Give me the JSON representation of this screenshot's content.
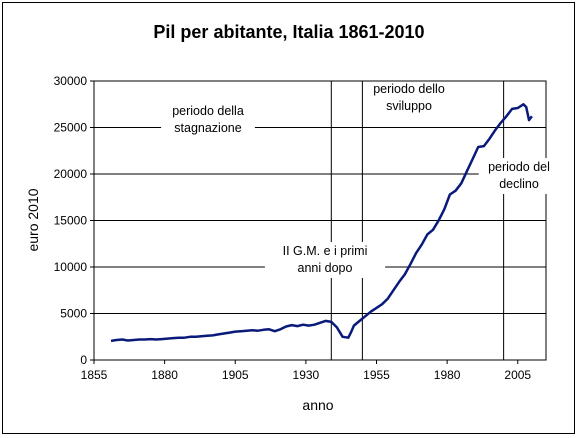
{
  "chart_data": {
    "type": "line",
    "title": "Pil per abitante, Italia 1861-2010",
    "xlabel": "anno",
    "ylabel": "euro 2010",
    "xlim": [
      1855,
      2015
    ],
    "ylim": [
      0,
      30000
    ],
    "x_ticks": [
      1855,
      1880,
      1905,
      1930,
      1955,
      1980,
      2005
    ],
    "y_ticks": [
      0,
      5000,
      10000,
      15000,
      20000,
      25000,
      30000
    ],
    "grid": "horizontal",
    "line_color": "#0a1a7a",
    "series": [
      {
        "x": [
          1861,
          1863,
          1865,
          1867,
          1869,
          1871,
          1873,
          1875,
          1877,
          1879,
          1881,
          1883,
          1885,
          1887,
          1889,
          1891,
          1893,
          1895,
          1897,
          1899,
          1901,
          1903,
          1905,
          1907,
          1909,
          1911,
          1913,
          1915,
          1917,
          1919,
          1921,
          1923,
          1925,
          1927,
          1929,
          1931,
          1933,
          1935,
          1937,
          1939,
          1941,
          1943,
          1945,
          1946,
          1947,
          1949,
          1951,
          1953,
          1955,
          1957,
          1959,
          1961,
          1963,
          1965,
          1967,
          1969,
          1971,
          1973,
          1975,
          1977,
          1979,
          1981,
          1983,
          1985,
          1987,
          1989,
          1991,
          1993,
          1995,
          1997,
          1999,
          2001,
          2003,
          2005,
          2007,
          2008,
          2009,
          2010
        ],
        "y": [
          2050,
          2150,
          2200,
          2100,
          2150,
          2200,
          2200,
          2250,
          2200,
          2250,
          2300,
          2350,
          2400,
          2400,
          2500,
          2500,
          2550,
          2600,
          2650,
          2750,
          2850,
          2950,
          3050,
          3100,
          3150,
          3200,
          3150,
          3250,
          3300,
          3100,
          3300,
          3600,
          3750,
          3650,
          3800,
          3700,
          3800,
          4000,
          4200,
          4100,
          3500,
          2500,
          2400,
          3000,
          3700,
          4200,
          4700,
          5200,
          5600,
          6000,
          6600,
          7500,
          8400,
          9200,
          10300,
          11500,
          12400,
          13500,
          14000,
          15000,
          16200,
          17800,
          18200,
          19000,
          20300,
          21600,
          22900,
          23000,
          23800,
          24700,
          25500,
          26200,
          27000,
          27100,
          27500,
          27200,
          25800,
          26200
        ]
      }
    ],
    "vlines": [
      1939,
      1950,
      2000
    ],
    "annotations": [
      {
        "lines": [
          "periodo della",
          "stagnazione"
        ]
      },
      {
        "lines": [
          "periodo dello",
          "sviluppo"
        ]
      },
      {
        "lines": [
          "periodo del",
          "declino"
        ]
      },
      {
        "lines": [
          "II G.M. e i primi",
          "anni dopo"
        ]
      }
    ]
  }
}
